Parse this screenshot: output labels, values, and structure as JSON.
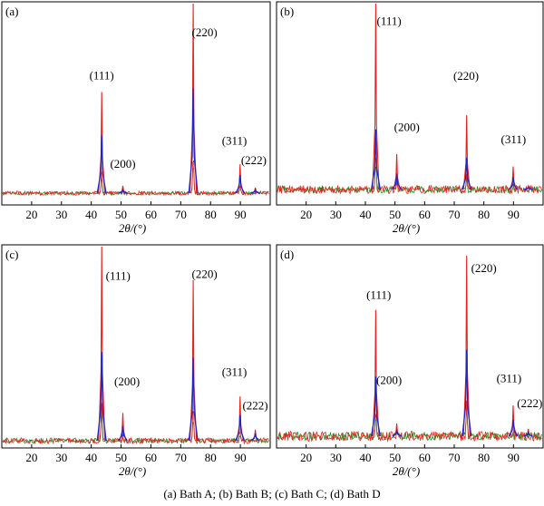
{
  "caption": "(a) Bath A; (b) Bath B; (c) Bath C; (d) Bath D",
  "colors": {
    "red": "#e8231f",
    "blue": "#2323c8",
    "green": "#1a8a1a",
    "frame": "#000000"
  },
  "chart_data": [
    {
      "panel": "(a)",
      "type": "line",
      "xlabel": "2θ/(°)",
      "xlim": [
        10,
        100
      ],
      "xticks": [
        "20",
        "30",
        "40",
        "50",
        "60",
        "70",
        "80",
        "90"
      ],
      "ylim": [
        0,
        1.06
      ],
      "series": [
        {
          "color": "red",
          "peaks": [
            [
              43.5,
              0.56
            ],
            [
              50.6,
              0.04
            ],
            [
              74.2,
              1.05
            ],
            [
              89.9,
              0.16
            ],
            [
              95.0,
              0.03
            ]
          ]
        },
        {
          "color": "blue",
          "peaks": [
            [
              43.5,
              0.32
            ],
            [
              50.6,
              0.02
            ],
            [
              74.2,
              0.58
            ],
            [
              89.9,
              0.1
            ],
            [
              95.0,
              0.02
            ]
          ]
        }
      ],
      "annotations": [
        {
          "text": "(111)",
          "x": 43.5,
          "y": 0.63
        },
        {
          "text": "(200)",
          "x": 50.6,
          "y": 0.14
        },
        {
          "text": "(220)",
          "x": 78.0,
          "y": 0.87
        },
        {
          "text": "(311)",
          "x": 88.0,
          "y": 0.27
        },
        {
          "text": "(222)",
          "x": 94.5,
          "y": 0.16
        }
      ]
    },
    {
      "panel": "(b)",
      "type": "line",
      "xlabel": "2θ/(°)",
      "xlim": [
        10,
        100
      ],
      "xticks": [
        "20",
        "30",
        "40",
        "50",
        "60",
        "70",
        "80",
        "90"
      ],
      "ylim": [
        0,
        1.06
      ],
      "series": [
        {
          "color": "red",
          "peaks": [
            [
              43.5,
              1.05
            ],
            [
              50.6,
              0.2
            ],
            [
              74.2,
              0.42
            ],
            [
              89.9,
              0.13
            ],
            [
              95.0,
              0.02
            ]
          ]
        },
        {
          "color": "blue",
          "peaks": [
            [
              43.5,
              0.34
            ],
            [
              50.6,
              0.09
            ],
            [
              74.2,
              0.18
            ],
            [
              89.9,
              0.07
            ],
            [
              95.0,
              0.01
            ]
          ]
        }
      ],
      "annotations": [
        {
          "text": "(111)",
          "x": 48.0,
          "y": 0.93
        },
        {
          "text": "(200)",
          "x": 54.0,
          "y": 0.33
        },
        {
          "text": "(220)",
          "x": 74.0,
          "y": 0.62
        },
        {
          "text": "(311)",
          "x": 90.0,
          "y": 0.26
        }
      ]
    },
    {
      "panel": "(c)",
      "type": "line",
      "xlabel": "2θ/(°)",
      "xlim": [
        10,
        100
      ],
      "xticks": [
        "20",
        "30",
        "40",
        "50",
        "60",
        "70",
        "80",
        "90"
      ],
      "ylim": [
        0,
        1.06
      ],
      "series": [
        {
          "color": "red",
          "peaks": [
            [
              43.5,
              1.05
            ],
            [
              50.6,
              0.15
            ],
            [
              74.2,
              0.87
            ],
            [
              89.9,
              0.24
            ],
            [
              95.0,
              0.06
            ]
          ]
        },
        {
          "color": "blue",
          "peaks": [
            [
              43.5,
              0.48
            ],
            [
              50.6,
              0.08
            ],
            [
              74.2,
              0.45
            ],
            [
              89.9,
              0.14
            ],
            [
              95.0,
              0.04
            ]
          ]
        }
      ],
      "annotations": [
        {
          "text": "(111)",
          "x": 49.0,
          "y": 0.87
        },
        {
          "text": "(200)",
          "x": 52.0,
          "y": 0.3
        },
        {
          "text": "(220)",
          "x": 78.0,
          "y": 0.88
        },
        {
          "text": "(311)",
          "x": 88.0,
          "y": 0.35
        },
        {
          "text": "(222)",
          "x": 95.0,
          "y": 0.17
        }
      ]
    },
    {
      "panel": "(d)",
      "type": "line",
      "xlabel": "2θ/(°)",
      "xlim": [
        10,
        100
      ],
      "xticks": [
        "20",
        "30",
        "40",
        "50",
        "60",
        "70",
        "80",
        "90"
      ],
      "ylim": [
        0,
        1.06
      ],
      "series": [
        {
          "color": "red",
          "peaks": [
            [
              43.5,
              0.7
            ],
            [
              50.6,
              0.07
            ],
            [
              74.2,
              1.0
            ],
            [
              89.9,
              0.17
            ],
            [
              95.0,
              0.04
            ]
          ]
        },
        {
          "color": "blue",
          "peaks": [
            [
              43.5,
              0.33
            ],
            [
              50.6,
              0.03
            ],
            [
              74.2,
              0.48
            ],
            [
              89.9,
              0.09
            ],
            [
              95.0,
              0.02
            ]
          ]
        }
      ],
      "annotations": [
        {
          "text": "(111)",
          "x": 44.5,
          "y": 0.76
        },
        {
          "text": "(200)",
          "x": 48.0,
          "y": 0.29
        },
        {
          "text": "(220)",
          "x": 80.0,
          "y": 0.91
        },
        {
          "text": "(311)",
          "x": 88.5,
          "y": 0.3
        },
        {
          "text": "(222)",
          "x": 95.5,
          "y": 0.16
        }
      ]
    }
  ]
}
